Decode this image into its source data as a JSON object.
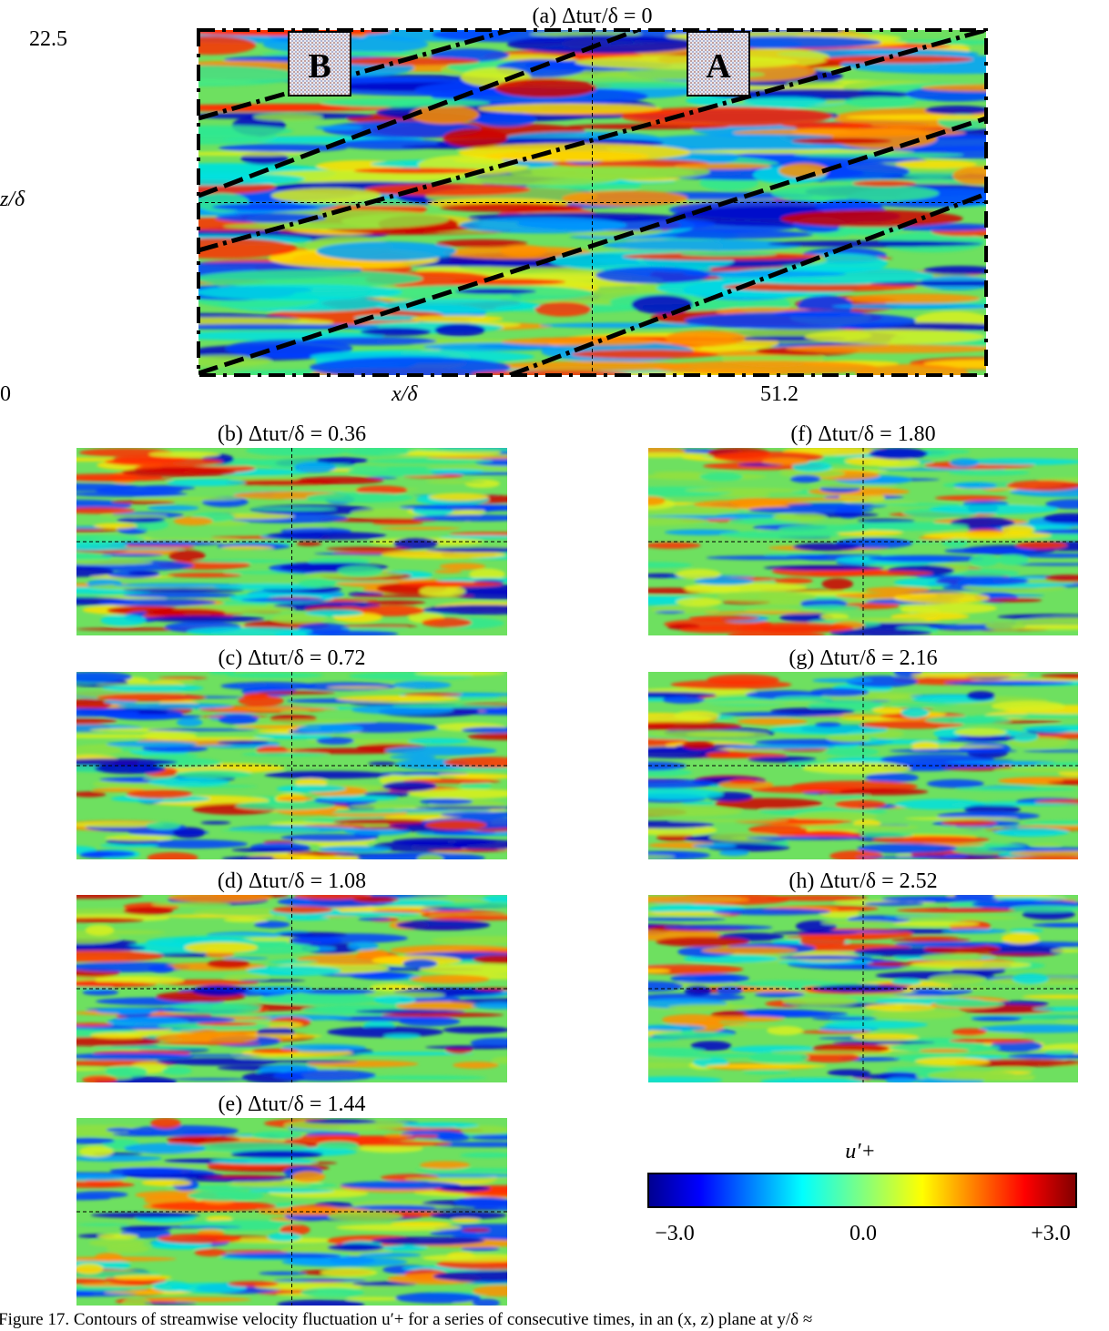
{
  "panels": [
    {
      "label": "(a) Δtuτ/δ = 0"
    },
    {
      "label": "(b) Δtuτ/δ = 0.36"
    },
    {
      "label": "(c) Δtuτ/δ = 0.72"
    },
    {
      "label": "(d) Δtuτ/δ = 1.08"
    },
    {
      "label": "(e) Δtuτ/δ = 1.44"
    },
    {
      "label": "(f) Δtuτ/δ = 1.80"
    },
    {
      "label": "(g) Δtuτ/δ = 2.16"
    },
    {
      "label": "(h) Δtuτ/δ = 2.52"
    }
  ],
  "main_axes": {
    "y_max": "22.5",
    "y_label": "z/δ",
    "origin": "0",
    "x_label": "x/δ",
    "x_max": "51.2"
  },
  "boxes": [
    "B",
    "A"
  ],
  "colorbar": {
    "title": "u′+",
    "ticks": [
      "−3.0",
      "0.0",
      "+3.0"
    ]
  },
  "caption": "Figure 17.  Contours of streamwise velocity fluctuation u′+ for a series of consecutive times, in an (x, z) plane at y/δ ≈"
}
